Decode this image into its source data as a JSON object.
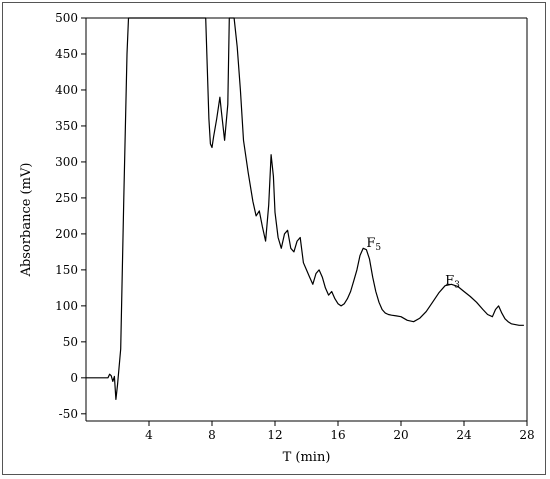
{
  "chart_data": {
    "type": "line",
    "title": "",
    "xlabel": "T (min)",
    "ylabel": "Absorbance (mV)",
    "xlim": [
      0,
      28
    ],
    "ylim": [
      -60,
      500
    ],
    "x_ticks": [
      4,
      8,
      12,
      16,
      20,
      24,
      28
    ],
    "y_ticks": [
      -50,
      0,
      50,
      100,
      150,
      200,
      250,
      300,
      350,
      400,
      450,
      500
    ],
    "grid": false,
    "line_color": "#000000",
    "annotations": [
      {
        "main": "F",
        "sub": "5",
        "x": 17.8,
        "y": 182
      },
      {
        "main": "F",
        "sub": "3",
        "x": 22.8,
        "y": 130
      }
    ],
    "series": [
      {
        "x": [
          0.0,
          1.4,
          1.5,
          1.6,
          1.7,
          1.8,
          1.9,
          2.0,
          2.2,
          2.4,
          2.6,
          2.7,
          7.6,
          7.7,
          7.8,
          7.9,
          8.0,
          8.1,
          8.3,
          8.5,
          8.6,
          8.8,
          9.0,
          9.1,
          9.2,
          9.4,
          9.6,
          9.8,
          10.0,
          10.3,
          10.6,
          10.8,
          11.0,
          11.2,
          11.4,
          11.6,
          11.75,
          11.9,
          12.0,
          12.2,
          12.4,
          12.6,
          12.8,
          13.0,
          13.2,
          13.4,
          13.6,
          13.8,
          14.0,
          14.2,
          14.4,
          14.6,
          14.8,
          15.0,
          15.2,
          15.4,
          15.6,
          15.8,
          16.0,
          16.2,
          16.4,
          16.6,
          16.8,
          17.0,
          17.2,
          17.4,
          17.6,
          17.8,
          18.0,
          18.2,
          18.4,
          18.6,
          18.8,
          19.0,
          19.2,
          19.4,
          19.7,
          20.0,
          20.4,
          20.8,
          21.2,
          21.6,
          22.0,
          22.4,
          22.8,
          23.2,
          23.6,
          24.0,
          24.4,
          24.8,
          25.2,
          25.5,
          25.8,
          26.0,
          26.2,
          26.4,
          26.6,
          26.8,
          27.0,
          27.5,
          27.8
        ],
        "values": [
          0,
          0,
          5,
          3,
          -5,
          2,
          -30,
          -10,
          40,
          250,
          450,
          500,
          500,
          430,
          360,
          325,
          320,
          335,
          360,
          390,
          370,
          330,
          380,
          500,
          500,
          500,
          460,
          400,
          330,
          285,
          245,
          225,
          232,
          210,
          190,
          240,
          310,
          280,
          230,
          195,
          180,
          200,
          205,
          180,
          175,
          190,
          195,
          160,
          150,
          140,
          130,
          145,
          150,
          140,
          125,
          115,
          120,
          110,
          103,
          100,
          103,
          110,
          120,
          135,
          150,
          170,
          180,
          178,
          165,
          140,
          120,
          105,
          95,
          90,
          88,
          87,
          86,
          85,
          80,
          78,
          83,
          92,
          105,
          118,
          128,
          130,
          127,
          120,
          113,
          105,
          95,
          88,
          85,
          95,
          100,
          90,
          82,
          78,
          75,
          73,
          73
        ]
      }
    ]
  }
}
